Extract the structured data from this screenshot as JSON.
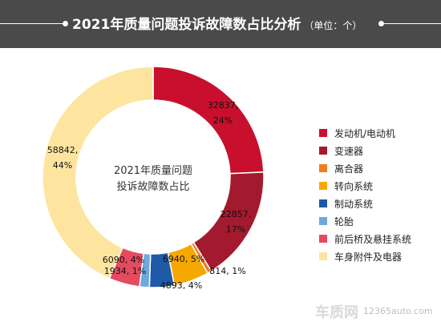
{
  "header": {
    "title": "2021年质量问题投诉故障数占比分析",
    "unit": "（单位：个）"
  },
  "chart_data": {
    "type": "pie",
    "title": "2021年质量问题投诉故障数占比分析",
    "center_label": [
      "2021年质量问题",
      "投诉故障数占比"
    ],
    "legend_position": "right",
    "series": [
      {
        "name": "发动机/电动机",
        "value": 32837,
        "percent": "24%",
        "color": "#c8102e"
      },
      {
        "name": "变速器",
        "value": 22857,
        "percent": "17%",
        "color": "#a31a2e"
      },
      {
        "name": "离合器",
        "value": 814,
        "percent": "1%",
        "color": "#f07d1e"
      },
      {
        "name": "转向系统",
        "value": 6940,
        "percent": "5%",
        "color": "#f5a800"
      },
      {
        "name": "制动系统",
        "value": 4893,
        "percent": "4%",
        "color": "#1f5aa6"
      },
      {
        "name": "轮胎",
        "value": 1934,
        "percent": "1%",
        "color": "#6fa8dc"
      },
      {
        "name": "前后桥及悬挂系统",
        "value": 6090,
        "percent": "4%",
        "color": "#e54b5f"
      },
      {
        "name": "车身附件及电器",
        "value": 58842,
        "percent": "44%",
        "color": "#fde5a0"
      }
    ]
  },
  "watermark": {
    "logo": "车质网",
    "url": "12365auto.com"
  }
}
